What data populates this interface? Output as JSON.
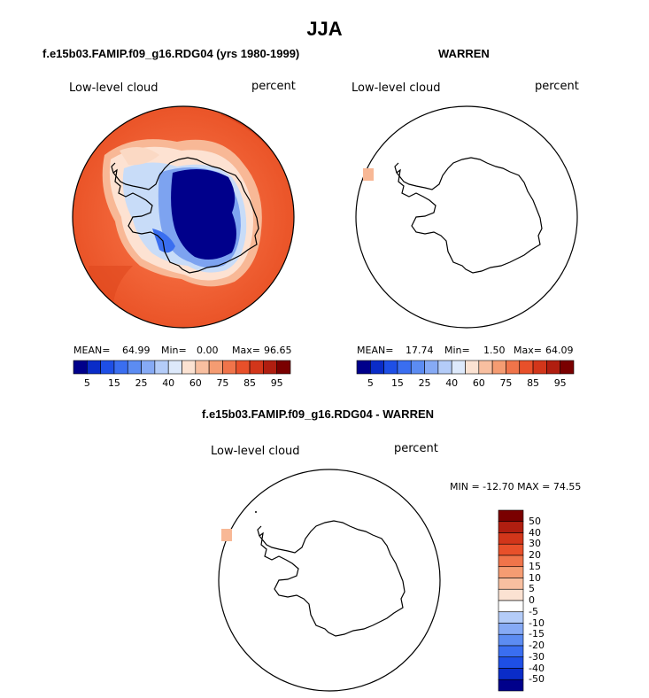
{
  "title": "JJA",
  "panel1": {
    "case": "f.e15b03.FAMIP.f09_g16.RDG04 (yrs 1980-1999)",
    "variable": "Low-level cloud",
    "units": "percent",
    "mean_label": "MEAN=",
    "mean_value": "64.99",
    "min_label": "Min=",
    "min_value": "0.00",
    "max_label": "Max=",
    "max_value": "96.65"
  },
  "panel2": {
    "case": "WARREN",
    "variable": "Low-level cloud",
    "units": "percent",
    "mean_label": "MEAN=",
    "mean_value": "17.74",
    "min_label": "Min=",
    "min_value": "1.50",
    "max_label": "Max=",
    "max_value": "64.09"
  },
  "panel3": {
    "case": "f.e15b03.FAMIP.f09_g16.RDG04 - WARREN",
    "variable": "Low-level cloud",
    "units": "percent",
    "minmax": "MIN = -12.70 MAX =   74.55"
  },
  "colorbar_abs": {
    "colors": [
      "#00008b",
      "#0a2cc8",
      "#1e4fe6",
      "#3a6ef0",
      "#5c8cf2",
      "#86aaf5",
      "#b4ccf8",
      "#dde9fb",
      "#fbe2d2",
      "#f8bfa0",
      "#f59c72",
      "#f0744a",
      "#e8502a",
      "#d2361a",
      "#b01e10",
      "#7a0000"
    ],
    "tick_labels": [
      "5",
      "15",
      "25",
      "40",
      "60",
      "75",
      "85",
      "95"
    ]
  },
  "colorbar_diff": {
    "colors": [
      "#7a0000",
      "#b01e10",
      "#d2361a",
      "#e8502a",
      "#f0744a",
      "#f59c72",
      "#f8bfa0",
      "#fbe2d2",
      "#ffffff",
      "#b4ccf8",
      "#86aaf5",
      "#5c8cf2",
      "#3a6ef0",
      "#1e4fe6",
      "#0a2cc8",
      "#00008b"
    ],
    "tick_labels": [
      "50",
      "40",
      "30",
      "20",
      "15",
      "10",
      "5",
      "0",
      "-5",
      "-10",
      "-15",
      "-20",
      "-30",
      "-40",
      "-50"
    ]
  }
}
